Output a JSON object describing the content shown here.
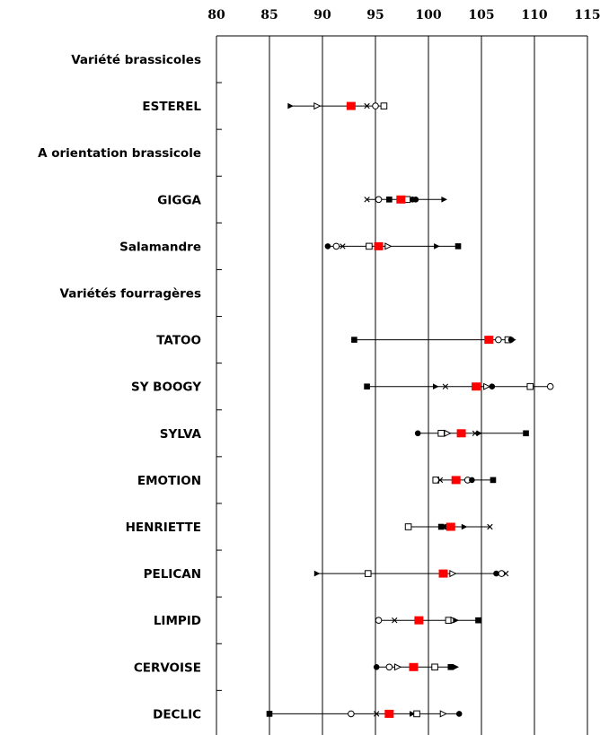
{
  "chart_data": {
    "type": "dot-range",
    "title": "",
    "xlabel": "",
    "ylabel": "",
    "xlim": [
      80,
      115
    ],
    "x_ticks": [
      "80",
      "85",
      "90",
      "95",
      "100",
      "105",
      "110",
      "115"
    ],
    "axis_position": "top",
    "grid": "vertical lines at each tick",
    "highlight_color": "#ff0000",
    "categories": [
      {
        "label": "Variété brassicoles",
        "header": true
      },
      {
        "label": "ESTEREL",
        "min": 87.0,
        "max": 95.8,
        "mean": 92.7,
        "points": [
          {
            "x": 87.0,
            "m": "tri-fill"
          },
          {
            "x": 89.5,
            "m": "tri-open"
          },
          {
            "x": 94.2,
            "m": "x"
          },
          {
            "x": 95.0,
            "m": "circle-open"
          },
          {
            "x": 95.8,
            "m": "square-open"
          }
        ]
      },
      {
        "label": "A orientation brassicole",
        "header": true
      },
      {
        "label": "GIGGA",
        "min": 94.2,
        "max": 101.5,
        "mean": 97.4,
        "points": [
          {
            "x": 94.2,
            "m": "x"
          },
          {
            "x": 95.3,
            "m": "circle-open"
          },
          {
            "x": 96.3,
            "m": "square-fill"
          },
          {
            "x": 98.0,
            "m": "square-open"
          },
          {
            "x": 98.5,
            "m": "circle-fill"
          },
          {
            "x": 98.8,
            "m": "circle-fill"
          },
          {
            "x": 101.5,
            "m": "tri-fill"
          }
        ]
      },
      {
        "label": "Salamandre",
        "min": 90.5,
        "max": 102.8,
        "mean": 95.3,
        "points": [
          {
            "x": 90.5,
            "m": "circle-fill"
          },
          {
            "x": 91.3,
            "m": "circle-open"
          },
          {
            "x": 91.9,
            "m": "x"
          },
          {
            "x": 94.4,
            "m": "square-open"
          },
          {
            "x": 96.2,
            "m": "tri-open"
          },
          {
            "x": 100.8,
            "m": "tri-fill"
          },
          {
            "x": 102.8,
            "m": "square-fill"
          }
        ]
      },
      {
        "label": "Variétés fourragères",
        "header": true
      },
      {
        "label": "TATOO",
        "min": 93.0,
        "max": 108.0,
        "mean": 105.7,
        "points": [
          {
            "x": 93.0,
            "m": "square-fill"
          },
          {
            "x": 106.6,
            "m": "circle-open"
          },
          {
            "x": 107.5,
            "m": "square-open"
          },
          {
            "x": 107.8,
            "m": "circle-fill"
          },
          {
            "x": 108.0,
            "m": "tri-fill"
          }
        ]
      },
      {
        "label": "SY BOOGY",
        "min": 94.2,
        "max": 111.5,
        "mean": 104.5,
        "points": [
          {
            "x": 94.2,
            "m": "square-fill"
          },
          {
            "x": 100.7,
            "m": "tri-fill"
          },
          {
            "x": 101.6,
            "m": "x"
          },
          {
            "x": 105.5,
            "m": "tri-open"
          },
          {
            "x": 106.0,
            "m": "circle-fill"
          },
          {
            "x": 109.6,
            "m": "square-open"
          },
          {
            "x": 111.5,
            "m": "circle-open"
          }
        ]
      },
      {
        "label": "SYLVA",
        "min": 99.0,
        "max": 109.2,
        "mean": 103.1,
        "points": [
          {
            "x": 99.0,
            "m": "circle-fill"
          },
          {
            "x": 101.2,
            "m": "square-open"
          },
          {
            "x": 101.8,
            "m": "tri-open"
          },
          {
            "x": 104.4,
            "m": "x"
          },
          {
            "x": 104.8,
            "m": "tri-fill"
          },
          {
            "x": 109.2,
            "m": "square-fill"
          }
        ]
      },
      {
        "label": "EMOTION",
        "min": 100.7,
        "max": 106.1,
        "mean": 102.6,
        "points": [
          {
            "x": 100.7,
            "m": "square-open"
          },
          {
            "x": 101.1,
            "m": "x"
          },
          {
            "x": 103.7,
            "m": "circle-open"
          },
          {
            "x": 104.1,
            "m": "circle-fill"
          },
          {
            "x": 106.1,
            "m": "square-fill"
          }
        ]
      },
      {
        "label": "HENRIETTE",
        "min": 98.1,
        "max": 105.8,
        "mean": 102.1,
        "points": [
          {
            "x": 98.1,
            "m": "square-open"
          },
          {
            "x": 101.2,
            "m": "square-fill"
          },
          {
            "x": 101.7,
            "m": "circle-fill"
          },
          {
            "x": 103.4,
            "m": "tri-fill"
          },
          {
            "x": 105.8,
            "m": "x"
          }
        ]
      },
      {
        "label": "PELICAN",
        "min": 89.5,
        "max": 107.3,
        "mean": 101.4,
        "points": [
          {
            "x": 89.5,
            "m": "tri-fill"
          },
          {
            "x": 94.3,
            "m": "square-open"
          },
          {
            "x": 102.3,
            "m": "tri-open"
          },
          {
            "x": 106.4,
            "m": "circle-fill"
          },
          {
            "x": 106.9,
            "m": "circle-open"
          },
          {
            "x": 107.3,
            "m": "x"
          }
        ]
      },
      {
        "label": "LIMPID",
        "min": 95.3,
        "max": 104.7,
        "mean": 99.1,
        "points": [
          {
            "x": 95.3,
            "m": "circle-open"
          },
          {
            "x": 96.8,
            "m": "x"
          },
          {
            "x": 101.9,
            "m": "square-open"
          },
          {
            "x": 102.4,
            "m": "tri-open"
          },
          {
            "x": 102.6,
            "m": "tri-fill"
          },
          {
            "x": 104.7,
            "m": "square-fill"
          }
        ]
      },
      {
        "label": "CERVOISE",
        "min": 95.1,
        "max": 102.6,
        "mean": 98.6,
        "points": [
          {
            "x": 95.1,
            "m": "circle-fill"
          },
          {
            "x": 96.3,
            "m": "circle-open"
          },
          {
            "x": 97.1,
            "m": "tri-open"
          },
          {
            "x": 100.6,
            "m": "square-open"
          },
          {
            "x": 102.1,
            "m": "square-fill"
          },
          {
            "x": 102.6,
            "m": "tri-fill"
          }
        ]
      },
      {
        "label": "DECLIC",
        "min": 85.0,
        "max": 102.9,
        "mean": 96.3,
        "points": [
          {
            "x": 85.0,
            "m": "square-fill"
          },
          {
            "x": 92.7,
            "m": "circle-open"
          },
          {
            "x": 95.1,
            "m": "x"
          },
          {
            "x": 98.5,
            "m": "tri-fill"
          },
          {
            "x": 98.9,
            "m": "square-open"
          },
          {
            "x": 101.4,
            "m": "tri-open"
          },
          {
            "x": 102.9,
            "m": "circle-fill"
          }
        ]
      }
    ]
  }
}
